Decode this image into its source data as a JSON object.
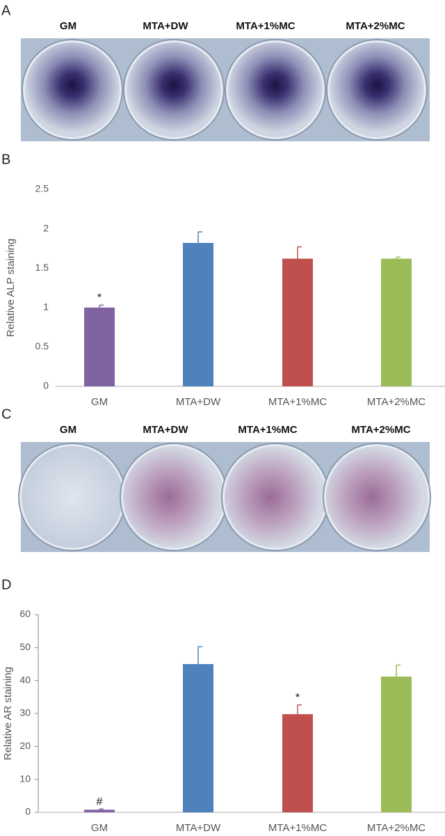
{
  "figure": {
    "panel_a": {
      "label": "A",
      "well_labels": [
        "GM",
        "MTA+DW",
        "MTA+1%MC",
        "MTA+2%MC"
      ]
    },
    "panel_c": {
      "label": "C",
      "well_labels": [
        "GM",
        "MTA+DW",
        "MTA+1%MC",
        "MTA+2%MC"
      ]
    }
  },
  "chart_data": [
    {
      "type": "bar",
      "panel_label": "B",
      "y_label": "Relative ALP staining",
      "categories": [
        "GM",
        "MTA+DW",
        "MTA+1%MC",
        "MTA+2%MC"
      ],
      "values": [
        1.0,
        1.82,
        1.62,
        1.62
      ],
      "errors": [
        0.03,
        0.14,
        0.15,
        0.02
      ],
      "value_annotations": [
        "*",
        null,
        null,
        null
      ],
      "colors": [
        "#8064a2",
        "#4f81bd",
        "#c0504d",
        "#9bbb59"
      ],
      "ylim": [
        0,
        2.5
      ],
      "yticks": [
        0,
        0.5,
        1,
        1.5,
        2,
        2.5
      ]
    },
    {
      "type": "bar",
      "panel_label": "D",
      "y_label": "Relative AR staining",
      "categories": [
        "GM",
        "MTA+DW",
        "MTA+1%MC",
        "MTA+2%MC"
      ],
      "values": [
        0.8,
        45,
        29.8,
        41.2
      ],
      "errors": [
        0.2,
        5.3,
        2.8,
        3.5
      ],
      "value_annotations": [
        "#",
        null,
        "*",
        null
      ],
      "colors": [
        "#8064a2",
        "#4f81bd",
        "#c0504d",
        "#9bbb59"
      ],
      "ylim": [
        0,
        60
      ],
      "yticks": [
        0,
        10,
        20,
        30,
        40,
        50,
        60
      ]
    }
  ]
}
